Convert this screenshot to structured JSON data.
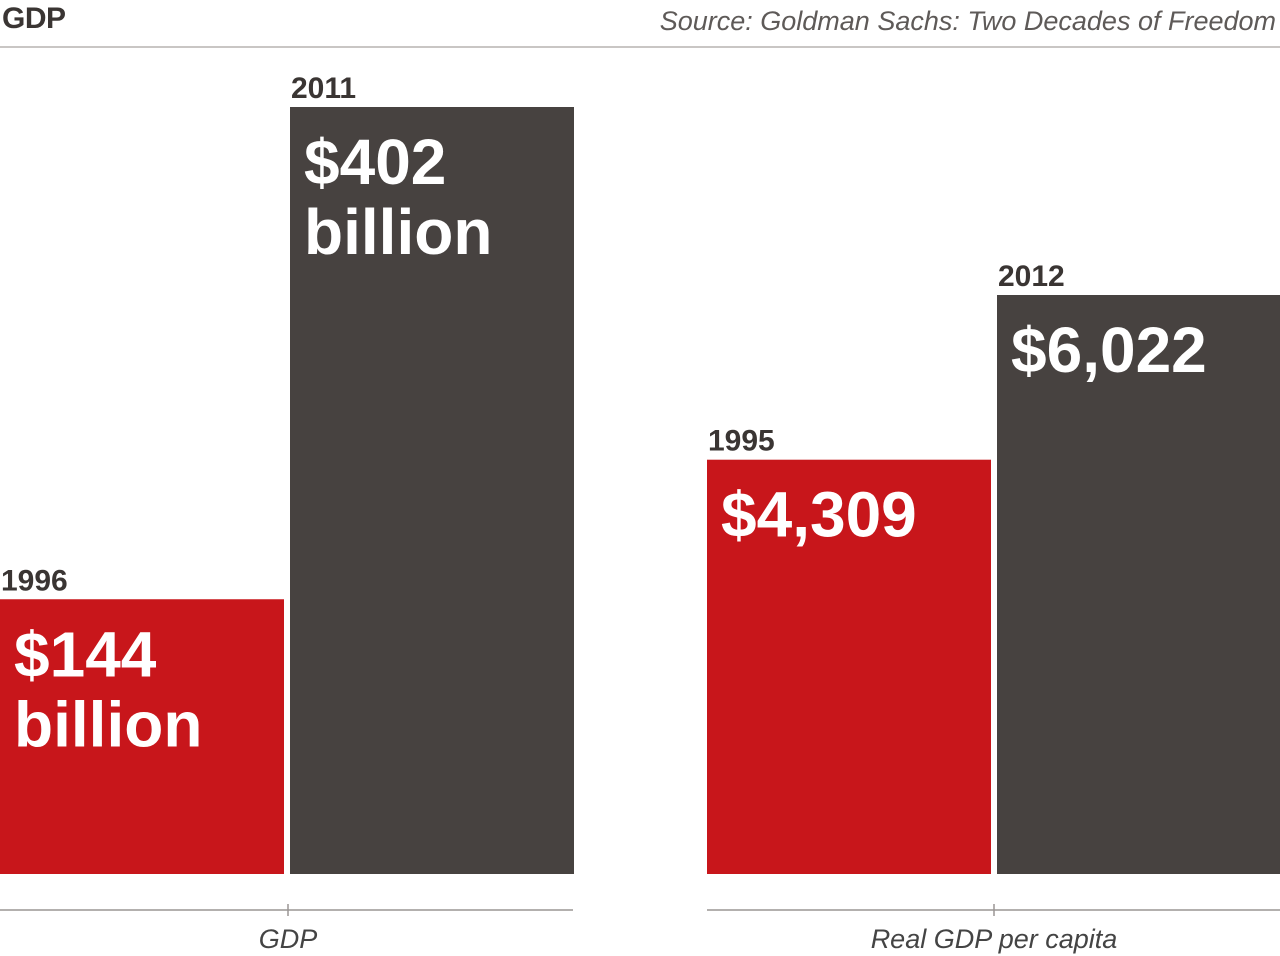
{
  "header": {
    "title": "GDP",
    "source": "Source: Goldman Sachs: Two Decades of Freedom"
  },
  "colors": {
    "early": "#c8161b",
    "late": "#474240",
    "axis": "#9a9694"
  },
  "chart_data": [
    {
      "type": "bar",
      "xlabel": "GDP",
      "categories": [
        "1996",
        "2011"
      ],
      "values": [
        144,
        402
      ],
      "unit": "billion",
      "value_labels": [
        [
          "$144",
          "billion"
        ],
        [
          "$402",
          "billion"
        ]
      ]
    },
    {
      "type": "bar",
      "xlabel": "Real GDP per capita",
      "categories": [
        "1995",
        "2012"
      ],
      "values": [
        4309,
        6022
      ],
      "value_labels": [
        [
          "$4,309"
        ],
        [
          "$6,022"
        ]
      ]
    }
  ]
}
